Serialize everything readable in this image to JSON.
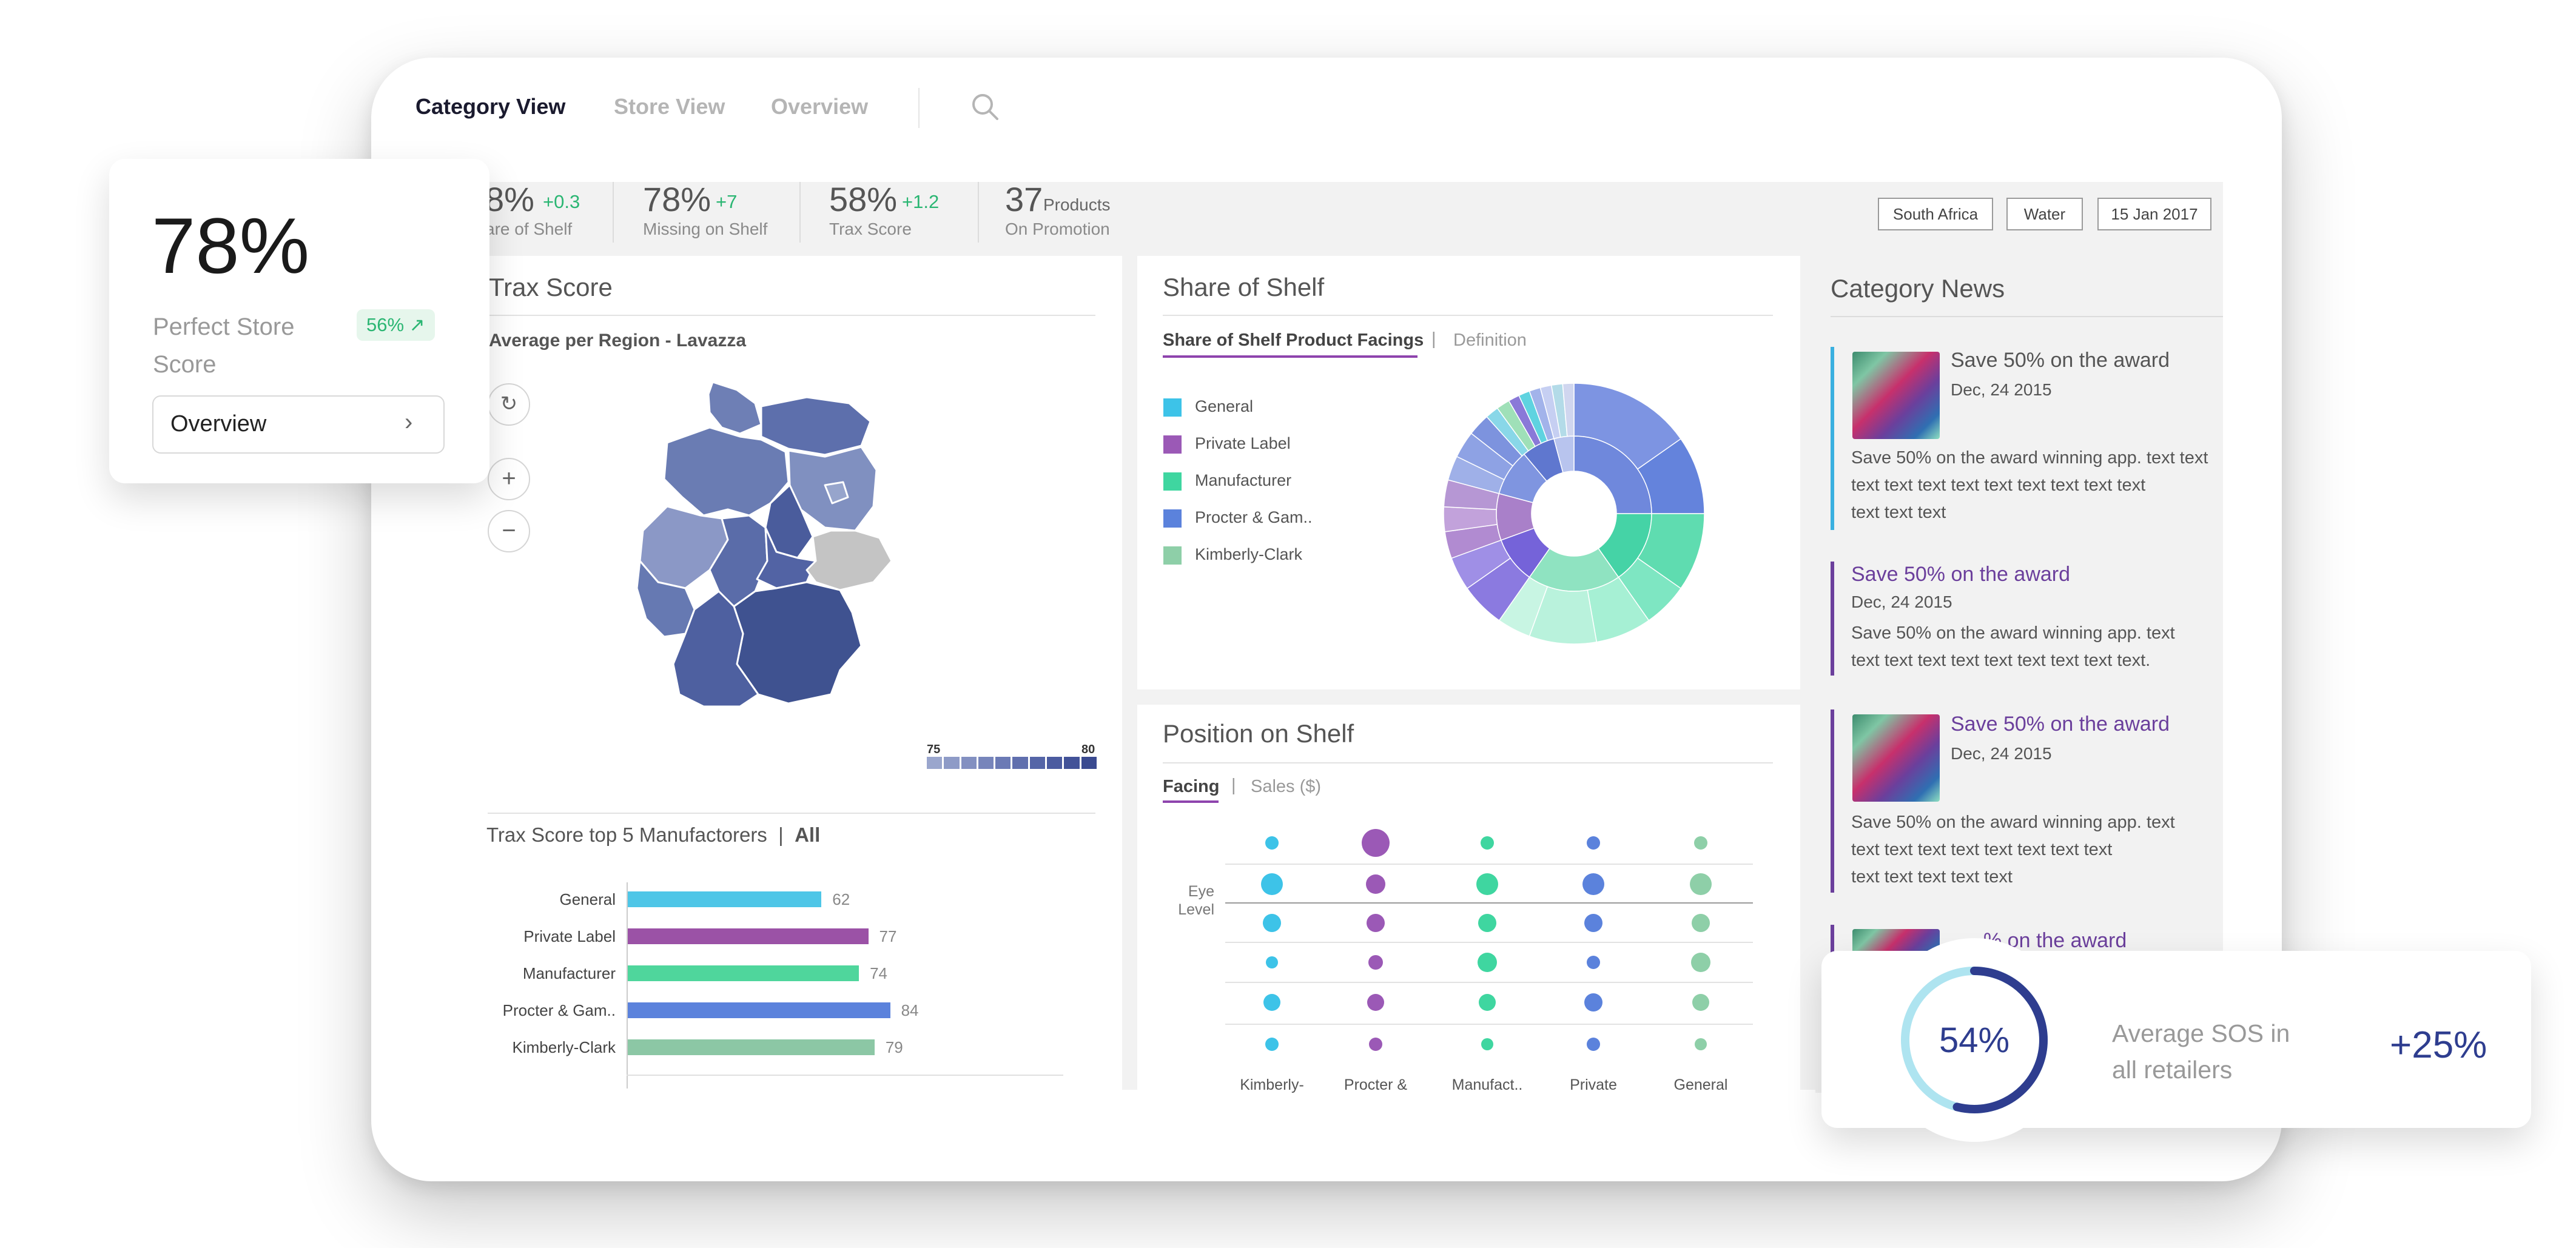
{
  "nav": {
    "tabs": [
      {
        "label": "Category View",
        "active": true
      },
      {
        "label": "Store View",
        "active": false
      },
      {
        "label": "Overview",
        "active": false
      }
    ],
    "search_icon": "search-icon"
  },
  "kpis": [
    {
      "value": "8%",
      "delta": "+0.3",
      "label": "are of Shelf"
    },
    {
      "value": "78%",
      "delta": "+7",
      "label": "Missing on Shelf"
    },
    {
      "value": "58%",
      "delta": "+1.2",
      "label": "Trax Score"
    },
    {
      "value": "37",
      "unit": "Products",
      "label": "On Promotion"
    }
  ],
  "filters": [
    "South Africa",
    "Water",
    "15 Jan 2017"
  ],
  "trax_score": {
    "title": "Trax Score",
    "map_subtitle": "Average per Region - Lavazza",
    "scale_min": "75",
    "scale_max": "80",
    "manufacturers_title": "Trax Score top 5 Manufactorers",
    "manufacturers_filter": "All",
    "icons": {
      "reset": "reset-icon",
      "zoom_in": "plus-icon",
      "zoom_out": "minus-icon"
    }
  },
  "chart_data": {
    "type": "bar",
    "title": "Trax Score top 5 Manufactorers",
    "categories": [
      "General",
      "Private Label",
      "Manufacturer",
      "Procter & Gam..",
      "Kimberly-Clark"
    ],
    "values": [
      62,
      77,
      74,
      84,
      79
    ],
    "colors": [
      "#4ec6e7",
      "#9b52a6",
      "#4fd69c",
      "#5b82dc",
      "#8cc7a5"
    ]
  },
  "share_of_shelf": {
    "title": "Share of Shelf",
    "tab_active": "Share of Shelf Product Facings",
    "tab_inactive": "Definition",
    "legend": [
      {
        "label": "General",
        "color": "#3dc3e8"
      },
      {
        "label": "Private Label",
        "color": "#9b59b6"
      },
      {
        "label": "Manufacturer",
        "color": "#3fd6a0"
      },
      {
        "label": "Procter & Gam..",
        "color": "#5b82dc"
      },
      {
        "label": "Kimberly-Clark",
        "color": "#8ecfa8"
      }
    ]
  },
  "position_on_shelf": {
    "title": "Position on Shelf",
    "tab_active": "Facing",
    "tab_inactive": "Sales ($)",
    "row_label_line1": "Eye",
    "row_label_line2": "Level",
    "columns": [
      "Kimberly-",
      "Procter &",
      "Manufact..",
      "Private",
      "General"
    ]
  },
  "category_news": {
    "title": "Category News",
    "items": [
      {
        "title": "Save 50% on the award",
        "date": "Dec, 24 2015",
        "text": [
          "Save 50% on the award winning app. text text",
          "text text text text text text text text text",
          "text text text"
        ],
        "accent": "#3ab0e0",
        "title_color": "#555555"
      },
      {
        "title": "Save 50% on the award",
        "date": "Dec, 24 2015",
        "text": [
          "Save 50% on the award winning app. text",
          "text text text text text text text text text."
        ],
        "accent": "#6b3f9c",
        "title_color": "#6b3f9c"
      },
      {
        "title": "Save 50% on the award",
        "date": "Dec, 24 2015",
        "text": [
          "Save 50% on the award winning app. text",
          "text text text text text text text text",
          "text text text text text"
        ],
        "accent": "#6b3f9c",
        "title_color": "#6b3f9c"
      },
      {
        "title": "% on the award",
        "accent": "#6b3f9c",
        "title_color": "#6b3f9c"
      }
    ]
  },
  "score_card": {
    "value": "78%",
    "label_line1": "Perfect Store",
    "label_line2": "Score",
    "badge": "56%",
    "badge_icon": "arrow-up-right-icon",
    "button": "Overview",
    "button_icon": "chevron-right-icon"
  },
  "sos_card": {
    "progress": 0.54,
    "value": "54%",
    "label_line1": "Average SOS in",
    "label_line2": "all retailers",
    "delta": "+25%"
  }
}
